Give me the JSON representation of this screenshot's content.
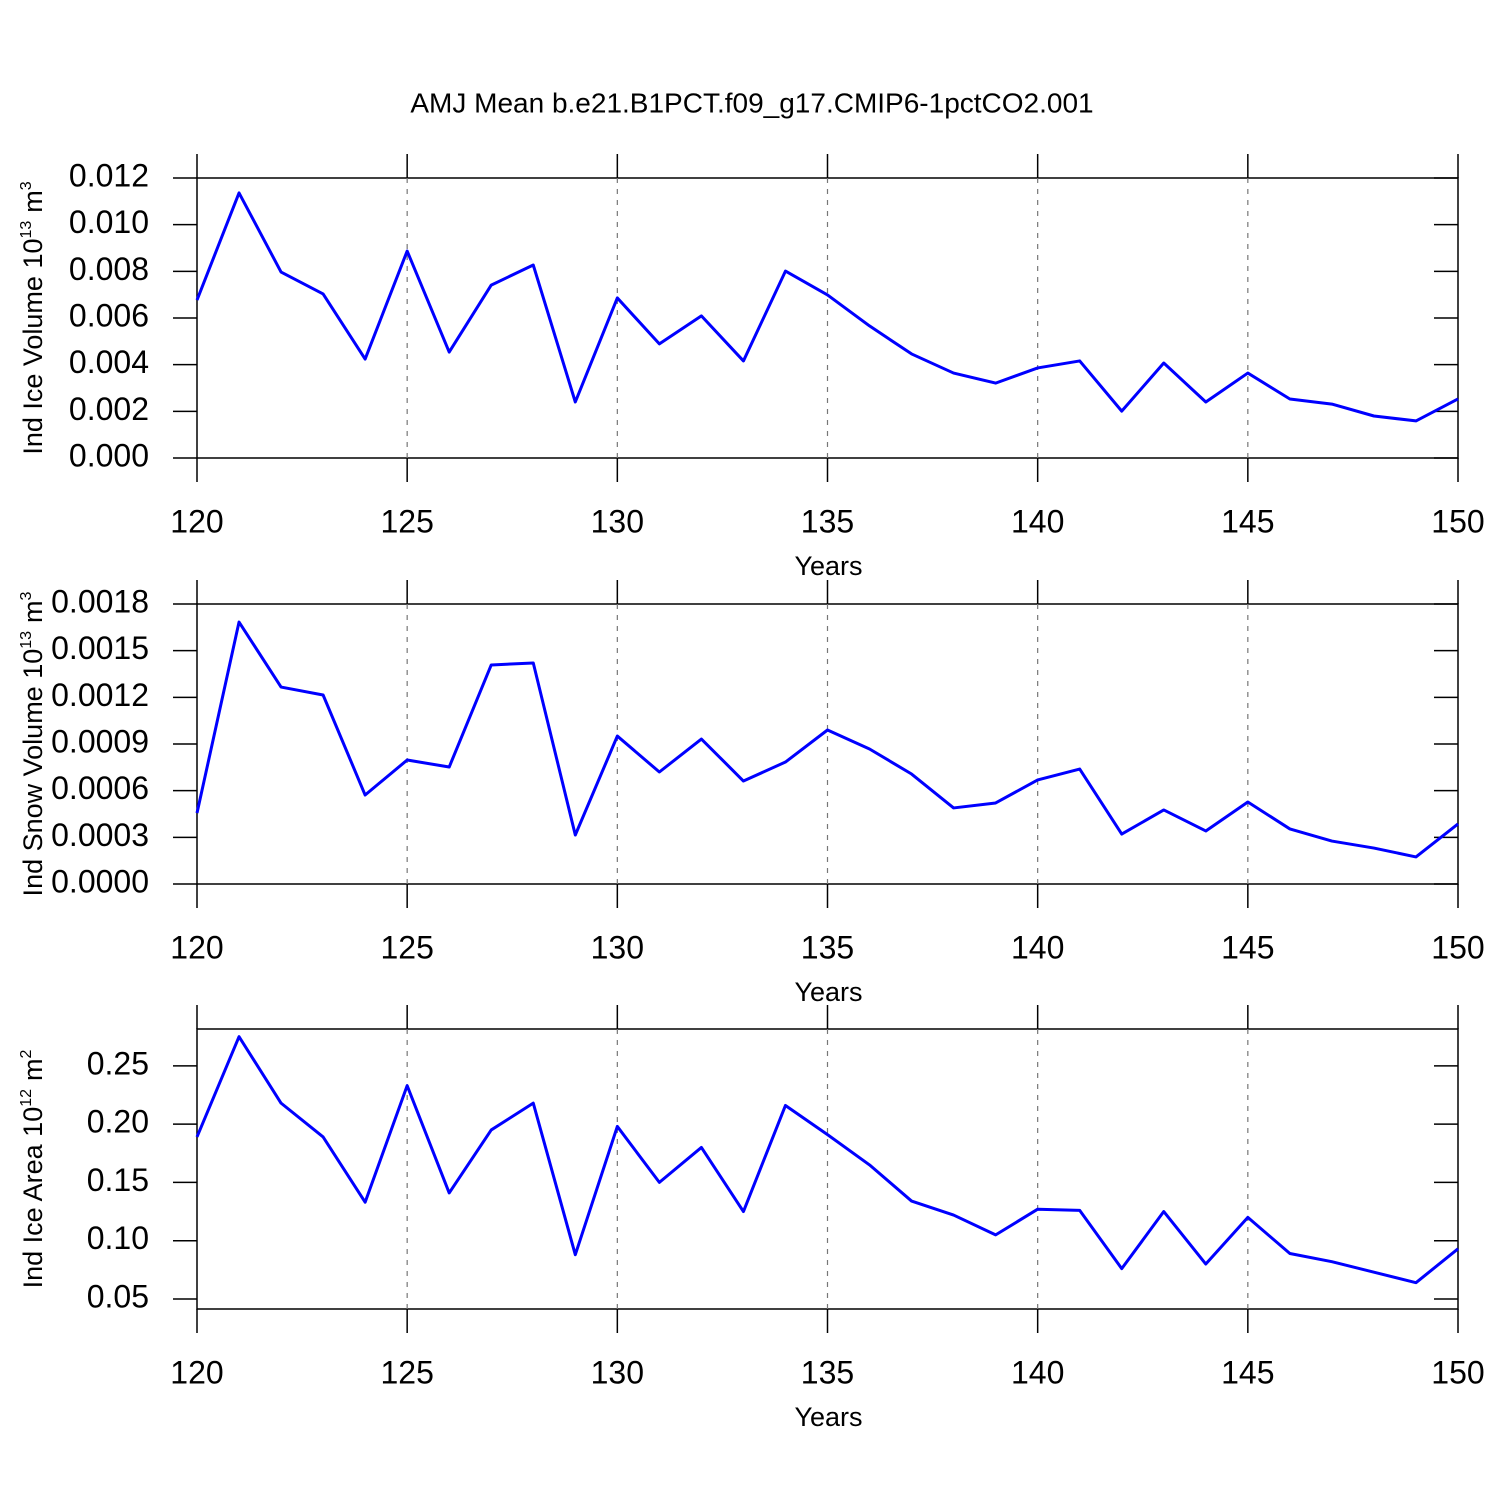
{
  "title": "AMJ Mean b.e21.B1PCT.f09_g17.CMIP6-1pctCO2.001",
  "chart_data": [
    {
      "type": "line",
      "xlabel": "Years",
      "ylabel": {
        "text": "Ind Ice Volume 10",
        "exp": "13",
        "unit": "m",
        "unit_exp": "3"
      },
      "x": [
        120,
        121,
        122,
        123,
        124,
        125,
        126,
        127,
        128,
        129,
        130,
        131,
        132,
        133,
        134,
        135,
        136,
        137,
        138,
        139,
        140,
        141,
        142,
        143,
        144,
        145,
        146,
        147,
        148,
        149,
        150
      ],
      "series": [
        {
          "color": "#0000ff",
          "values": [
            0.00677,
            0.01136,
            0.00797,
            0.00703,
            0.00424,
            0.00887,
            0.00454,
            0.00741,
            0.00827,
            0.0024,
            0.00686,
            0.00489,
            0.00609,
            0.00416,
            0.00801,
            0.00699,
            0.00566,
            0.00446,
            0.00364,
            0.00321,
            0.00386,
            0.00416,
            0.00201,
            0.00407,
            0.0024,
            0.00364,
            0.00253,
            0.00231,
            0.0018,
            0.00159,
            0.00253
          ]
        }
      ],
      "xlim": [
        120,
        150
      ],
      "xticks": [
        120,
        125,
        130,
        135,
        140,
        145,
        150
      ],
      "xgrid": true,
      "ylim": [
        0,
        0.012
      ],
      "yticks": [
        {
          "value": 0,
          "label": "0.000"
        },
        {
          "value": 0.002,
          "label": "0.002"
        },
        {
          "value": 0.004,
          "label": "0.004"
        },
        {
          "value": 0.006,
          "label": "0.006"
        },
        {
          "value": 0.008,
          "label": "0.008"
        },
        {
          "value": 0.01,
          "label": "0.010"
        },
        {
          "value": 0.012,
          "label": "0.012"
        }
      ]
    },
    {
      "type": "line",
      "xlabel": "Years",
      "ylabel": {
        "text": "Ind Snow Volume 10",
        "exp": "13",
        "unit": "m",
        "unit_exp": "3"
      },
      "x": [
        120,
        121,
        122,
        123,
        124,
        125,
        126,
        127,
        128,
        129,
        130,
        131,
        132,
        133,
        134,
        135,
        136,
        137,
        138,
        139,
        140,
        141,
        142,
        143,
        144,
        145,
        146,
        147,
        148,
        149,
        150
      ],
      "series": [
        {
          "color": "#0000ff",
          "values": [
            0.000456,
            0.001684,
            0.001266,
            0.001215,
            0.000572,
            0.000797,
            0.000752,
            0.001408,
            0.001421,
            0.000315,
            0.000951,
            0.00072,
            0.000932,
            0.000662,
            0.000784,
            0.00099,
            0.000868,
            0.000707,
            0.000489,
            0.000521,
            0.000669,
            0.000739,
            0.000321,
            0.000476,
            0.000341,
            0.000527,
            0.000354,
            0.000276,
            0.000231,
            0.000174,
            0.000386
          ]
        }
      ],
      "xlim": [
        120,
        150
      ],
      "xticks": [
        120,
        125,
        130,
        135,
        140,
        145,
        150
      ],
      "xgrid": true,
      "ylim": [
        0,
        0.0018
      ],
      "yticks": [
        {
          "value": 0,
          "label": "0.0000"
        },
        {
          "value": 0.0003,
          "label": "0.0003"
        },
        {
          "value": 0.0006,
          "label": "0.0006"
        },
        {
          "value": 0.0009,
          "label": "0.0009"
        },
        {
          "value": 0.0012,
          "label": "0.0012"
        },
        {
          "value": 0.0015,
          "label": "0.0015"
        },
        {
          "value": 0.0018,
          "label": "0.0018"
        }
      ]
    },
    {
      "type": "line",
      "xlabel": "Years",
      "ylabel": {
        "text": "Ind Ice Area 10",
        "exp": "12",
        "unit": "m",
        "unit_exp": "2"
      },
      "x": [
        120,
        121,
        122,
        123,
        124,
        125,
        126,
        127,
        128,
        129,
        130,
        131,
        132,
        133,
        134,
        135,
        136,
        137,
        138,
        139,
        140,
        141,
        142,
        143,
        144,
        145,
        146,
        147,
        148,
        149,
        150
      ],
      "series": [
        {
          "color": "#0000ff",
          "values": [
            0.189,
            0.275,
            0.218,
            0.189,
            0.133,
            0.233,
            0.141,
            0.195,
            0.218,
            0.088,
            0.198,
            0.15,
            0.18,
            0.125,
            0.216,
            0.191,
            0.165,
            0.134,
            0.122,
            0.105,
            0.127,
            0.126,
            0.076,
            0.125,
            0.08,
            0.12,
            0.089,
            0.082,
            0.073,
            0.064,
            0.093
          ]
        }
      ],
      "xlim": [
        120,
        150
      ],
      "xticks": [
        120,
        125,
        130,
        135,
        140,
        145,
        150
      ],
      "xgrid": true,
      "ylim": [
        0.0414,
        0.2816
      ],
      "yticks": [
        0.05,
        {
          "value": 0.1,
          "label": "0.10"
        },
        0.15,
        {
          "value": 0.2,
          "label": "0.20"
        },
        0.25
      ]
    }
  ]
}
